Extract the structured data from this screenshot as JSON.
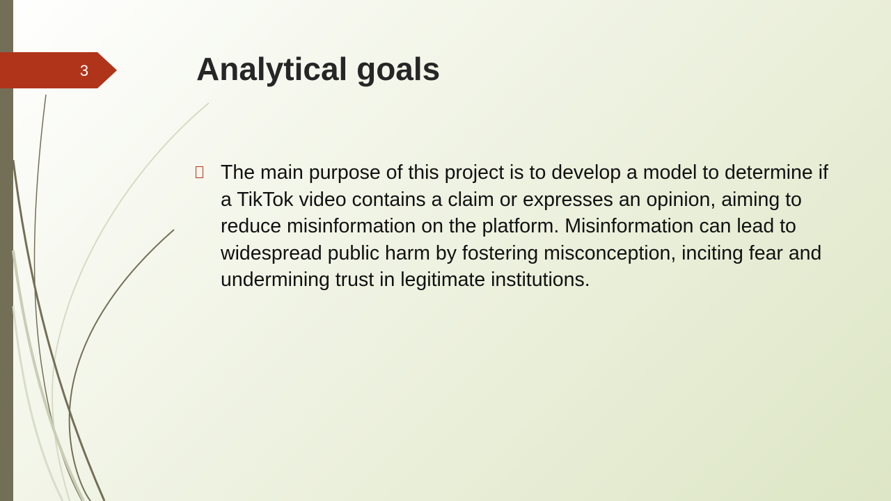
{
  "slide": {
    "number": "3",
    "title": "Analytical goals",
    "bullets": [
      {
        "text": "The main purpose of this project is to develop a model to determine if a TikTok video contains a claim or expresses an opinion, aiming to reduce misinformation on the platform. Misinformation can lead to widespread public harm by fostering misconception, inciting fear and undermining trust in legitimate institutions."
      }
    ]
  },
  "theme": {
    "accent": "#b0341a",
    "sidebar": "#736f56",
    "background_light": "#ffffff",
    "background_dark": "#dde6c6",
    "title_color": "#262626"
  }
}
